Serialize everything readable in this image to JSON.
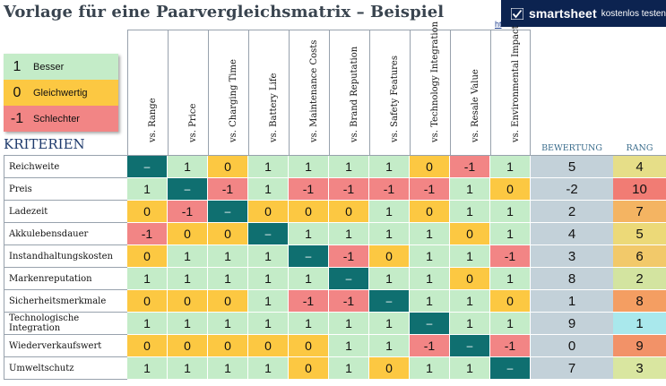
{
  "title": "Vorlage für eine Paarvergleichsmatrix – Beispiel",
  "link_fragment": "ht",
  "banner": {
    "brand": "smartsheet",
    "cta": "kostenlos testen",
    "icon": "smartsheet-logo-icon"
  },
  "legend": [
    {
      "value": "1",
      "label": "Besser",
      "color": "#c4ecc8"
    },
    {
      "value": "0",
      "label": "Gleichwertig",
      "color": "#fcc842"
    },
    {
      "value": "-1",
      "label": "Schlechter",
      "color": "#f28585"
    }
  ],
  "section_title": "KRITERIEN",
  "columns": [
    "vs. Range",
    "vs. Price",
    "vs. Charging Time",
    "vs. Battery Life",
    "vs. Maintenance Costs",
    "vs. Brand Reputation",
    "vs. Safety Features",
    "vs. Technology Integration",
    "vs. Resale Value",
    "vs. Environmental Impact"
  ],
  "score_header": "BEWERTUNG",
  "rank_header": "RANG",
  "diagonal_symbol": "–",
  "rows": [
    {
      "label": "Reichweite",
      "values": [
        "–",
        "1",
        "0",
        "1",
        "1",
        "1",
        "1",
        "0",
        "-1",
        "1"
      ],
      "score": "5",
      "rank": "4"
    },
    {
      "label": "Preis",
      "values": [
        "1",
        "–",
        "-1",
        "1",
        "-1",
        "-1",
        "-1",
        "-1",
        "1",
        "0"
      ],
      "score": "-2",
      "rank": "10"
    },
    {
      "label": "Ladezeit",
      "values": [
        "0",
        "-1",
        "–",
        "0",
        "0",
        "0",
        "1",
        "0",
        "1",
        "1"
      ],
      "score": "2",
      "rank": "7"
    },
    {
      "label": "Akkulebensdauer",
      "values": [
        "-1",
        "0",
        "0",
        "–",
        "1",
        "1",
        "1",
        "1",
        "0",
        "1"
      ],
      "score": "4",
      "rank": "5"
    },
    {
      "label": "Instandhaltungskosten",
      "values": [
        "0",
        "1",
        "1",
        "1",
        "–",
        "-1",
        "0",
        "1",
        "1",
        "-1"
      ],
      "score": "3",
      "rank": "6"
    },
    {
      "label": "Markenreputation",
      "values": [
        "1",
        "1",
        "1",
        "1",
        "1",
        "–",
        "1",
        "1",
        "0",
        "1"
      ],
      "score": "8",
      "rank": "2"
    },
    {
      "label": "Sicherheitsmerkmale",
      "values": [
        "0",
        "0",
        "0",
        "1",
        "-1",
        "-1",
        "–",
        "1",
        "1",
        "0"
      ],
      "score": "1",
      "rank": "8"
    },
    {
      "label": "Technologische Integration",
      "values": [
        "1",
        "1",
        "1",
        "1",
        "1",
        "1",
        "1",
        "–",
        "1",
        "1"
      ],
      "score": "9",
      "rank": "1"
    },
    {
      "label": "Wiederverkaufswert",
      "values": [
        "0",
        "0",
        "0",
        "0",
        "0",
        "1",
        "1",
        "-1",
        "–",
        "-1"
      ],
      "score": "0",
      "rank": "9"
    },
    {
      "label": "Umweltschutz",
      "values": [
        "1",
        "1",
        "1",
        "1",
        "0",
        "1",
        "0",
        "1",
        "1",
        "–"
      ],
      "score": "7",
      "rank": "3"
    }
  ],
  "colors": {
    "better": "#c4ecc8",
    "equal": "#fcc842",
    "worse": "#f28585",
    "diagonal": "#0f6f70",
    "score_bg": "#c3d1d9",
    "banner_bg": "#0c2350",
    "title": "#39444f",
    "section": "#1e3a6c",
    "rank_scale": {
      "1": "#a9e8ec",
      "2": "#d3e4a0",
      "3": "#d9e6a0",
      "4": "#e6de88",
      "5": "#ecd978",
      "6": "#f2c96a",
      "7": "#f4b462",
      "8": "#f49e62",
      "9": "#f29268",
      "10": "#f17c74"
    }
  }
}
